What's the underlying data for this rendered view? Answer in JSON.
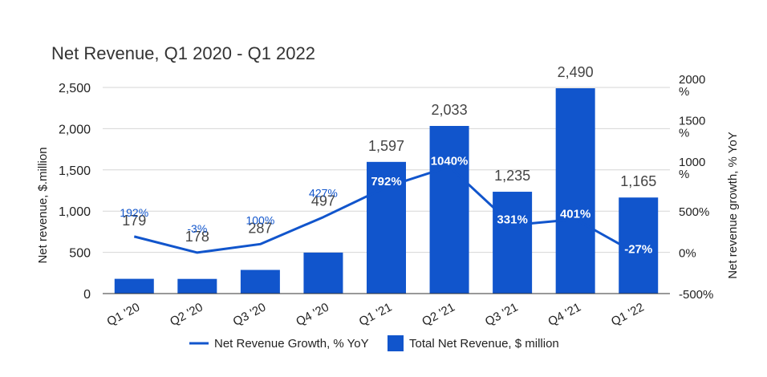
{
  "chart_data": {
    "type": "bar",
    "title": "Net Revenue, Q1 2020 - Q1 2022",
    "categories": [
      "Q1 '20",
      "Q2 '20",
      "Q3 '20",
      "Q4 '20",
      "Q1 '21",
      "Q2 '21",
      "Q3 '21",
      "Q4 '21",
      "Q1 '22"
    ],
    "ylabel": "Net revenue, $.million",
    "y2label": "Net revenue growth, % YoY",
    "ylim": [
      0,
      2500
    ],
    "y2lim": [
      -500,
      2000
    ],
    "yticks": [
      "0",
      "500",
      "1,000",
      "1,500",
      "2,000",
      "2,500"
    ],
    "y2ticks": [
      [
        "-500%"
      ],
      [
        "0%"
      ],
      [
        "500%"
      ],
      [
        "1000",
        "%"
      ],
      [
        "1500",
        "%"
      ],
      [
        "2000",
        "%"
      ]
    ],
    "grid": true,
    "legend_position": "bottom",
    "colors": {
      "bar": "#1155cc",
      "line": "#1155cc",
      "label": "#444444",
      "line_label": "#1155cc"
    },
    "series": [
      {
        "name": "Total Net Revenue, $ million",
        "type": "bar",
        "axis": "left",
        "values": [
          179,
          178,
          287,
          497,
          1597,
          2033,
          1235,
          2490,
          1165
        ],
        "labels": [
          "179",
          "178",
          "287",
          "497",
          "1,597",
          "2,033",
          "1,235",
          "2,490",
          "1,165"
        ]
      },
      {
        "name": "Net Revenue Growth, % YoY",
        "type": "line",
        "axis": "right",
        "values": [
          192,
          -3,
          100,
          427,
          792,
          1040,
          331,
          401,
          -27
        ],
        "labels": [
          "192%",
          "-3%",
          "100%",
          "427%",
          "792%",
          "1040%",
          "331%",
          "401%",
          "-27%"
        ]
      }
    ]
  }
}
